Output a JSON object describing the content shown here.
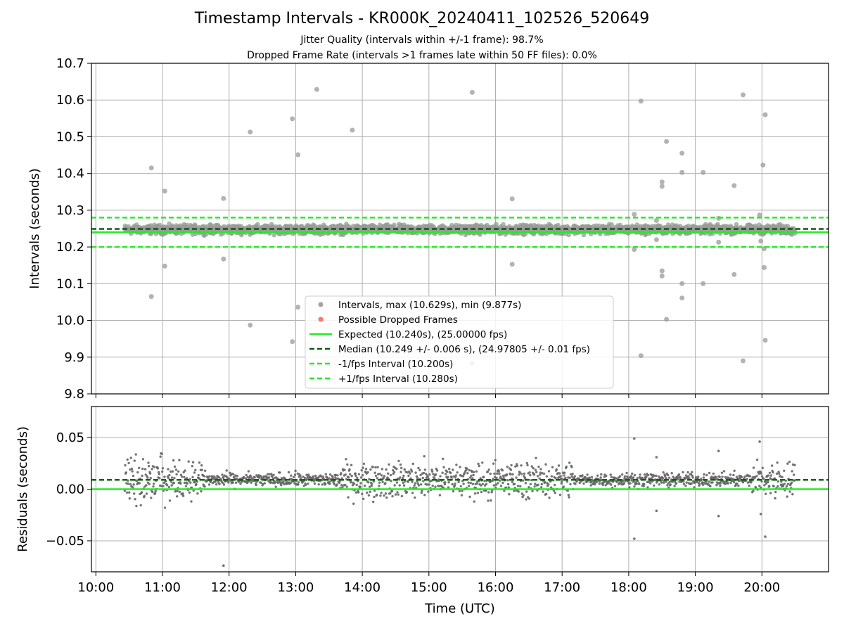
{
  "figure": {
    "title": "Timestamp Intervals - KR000K_20240411_102526_520649",
    "subtitle_1": "Jitter Quality (intervals within +/-1 frame): 98.7%",
    "subtitle_2": "Dropped Frame Rate (intervals >1 frames late within 50 FF files): 0.0%"
  },
  "colors": {
    "points": "#808080",
    "dropped": "#ff4040",
    "expected": "#22ee22",
    "median": "#006400",
    "fps_bounds": "#22ee22",
    "grid": "#b0b0b0"
  },
  "chart_data": [
    {
      "type": "scatter",
      "ylabel": "Intervals (seconds)",
      "xlabel": "",
      "grid": true,
      "xlim": [
        "09:56",
        "21:00"
      ],
      "ylim": [
        9.8,
        10.7
      ],
      "x_ticks": [
        "10:00",
        "11:00",
        "12:00",
        "13:00",
        "14:00",
        "15:00",
        "16:00",
        "17:00",
        "18:00",
        "19:00",
        "20:00"
      ],
      "y_ticks": [
        "9.8",
        "9.9",
        "10.0",
        "10.1",
        "10.2",
        "10.3",
        "10.4",
        "10.5",
        "10.6",
        "10.7"
      ],
      "legend_position": "lower-center",
      "legend": [
        {
          "label": "Intervals, max (10.629s), min (9.877s)",
          "kind": "dot",
          "color": "#999999"
        },
        {
          "label": "Possible Dropped Frames",
          "kind": "dot",
          "color": "#ff6666"
        },
        {
          "label": "Expected (10.240s), (25.00000 fps)",
          "kind": "solid",
          "color": "#22ee22"
        },
        {
          "label": "Median (10.249 +/- 0.006 s), (24.97805 +/- 0.01 fps)",
          "kind": "dashed",
          "color": "#006400"
        },
        {
          "label": "-1/fps Interval (10.200s)",
          "kind": "dashed",
          "color": "#22ee22"
        },
        {
          "label": "+1/fps Interval (10.280s)",
          "kind": "dashed",
          "color": "#22ee22"
        }
      ],
      "reference_lines": [
        {
          "name": "expected",
          "y": 10.24
        },
        {
          "name": "median",
          "y": 10.249
        },
        {
          "name": "minus_1_fps",
          "y": 10.2
        },
        {
          "name": "plus_1_fps",
          "y": 10.28
        }
      ],
      "time_range": [
        "10:26",
        "20:30"
      ],
      "main_band": [
        10.23,
        10.265
      ],
      "outliers": [
        {
          "x": "10:50",
          "y": 10.415
        },
        {
          "x": "10:50",
          "y": 10.065
        },
        {
          "x": "11:02",
          "y": 10.352
        },
        {
          "x": "11:02",
          "y": 10.148
        },
        {
          "x": "11:55",
          "y": 10.332
        },
        {
          "x": "11:55",
          "y": 10.167
        },
        {
          "x": "12:19",
          "y": 10.513
        },
        {
          "x": "12:19",
          "y": 9.987
        },
        {
          "x": "12:57",
          "y": 10.549
        },
        {
          "x": "12:57",
          "y": 9.942
        },
        {
          "x": "13:02",
          "y": 10.451
        },
        {
          "x": "13:02",
          "y": 10.036
        },
        {
          "x": "13:19",
          "y": 10.629
        },
        {
          "x": "13:51",
          "y": 10.518
        },
        {
          "x": "15:39",
          "y": 10.621
        },
        {
          "x": "15:39",
          "y": 9.883
        },
        {
          "x": "16:15",
          "y": 10.331
        },
        {
          "x": "16:15",
          "y": 10.153
        },
        {
          "x": "18:05",
          "y": 10.289
        },
        {
          "x": "18:05",
          "y": 10.193
        },
        {
          "x": "18:11",
          "y": 10.597
        },
        {
          "x": "18:11",
          "y": 9.904
        },
        {
          "x": "18:25",
          "y": 10.272
        },
        {
          "x": "18:25",
          "y": 10.22
        },
        {
          "x": "18:30",
          "y": 10.377
        },
        {
          "x": "18:30",
          "y": 10.365
        },
        {
          "x": "18:30",
          "y": 10.135
        },
        {
          "x": "18:30",
          "y": 10.121
        },
        {
          "x": "18:34",
          "y": 10.487
        },
        {
          "x": "18:34",
          "y": 10.003
        },
        {
          "x": "18:48",
          "y": 10.455
        },
        {
          "x": "18:48",
          "y": 10.403
        },
        {
          "x": "18:48",
          "y": 10.1
        },
        {
          "x": "18:48",
          "y": 10.061
        },
        {
          "x": "19:07",
          "y": 10.403
        },
        {
          "x": "19:07",
          "y": 10.1
        },
        {
          "x": "19:21",
          "y": 10.278
        },
        {
          "x": "19:21",
          "y": 10.213
        },
        {
          "x": "19:35",
          "y": 10.367
        },
        {
          "x": "19:35",
          "y": 10.125
        },
        {
          "x": "19:43",
          "y": 10.614
        },
        {
          "x": "19:43",
          "y": 9.89
        },
        {
          "x": "19:58",
          "y": 10.287
        },
        {
          "x": "19:59",
          "y": 10.216
        },
        {
          "x": "20:01",
          "y": 10.423
        },
        {
          "x": "20:02",
          "y": 10.195
        },
        {
          "x": "20:02",
          "y": 10.144
        },
        {
          "x": "20:03",
          "y": 10.56
        },
        {
          "x": "20:03",
          "y": 9.946
        }
      ]
    },
    {
      "type": "scatter",
      "ylabel": "Residuals (seconds)",
      "xlabel": "Time (UTC)",
      "grid": true,
      "xlim": [
        "09:56",
        "21:00"
      ],
      "ylim": [
        -0.08,
        0.08
      ],
      "x_ticks": [
        "10:00",
        "11:00",
        "12:00",
        "13:00",
        "14:00",
        "15:00",
        "16:00",
        "17:00",
        "18:00",
        "19:00",
        "20:00"
      ],
      "y_ticks": [
        "−0.05",
        "0.00",
        "0.05"
      ],
      "y_tick_values": [
        -0.05,
        0.0,
        0.05
      ],
      "reference_lines": [
        {
          "name": "zero",
          "y": 0.0
        },
        {
          "name": "median_offset",
          "y": 0.009
        }
      ],
      "time_range": [
        "10:26",
        "20:30"
      ],
      "main_band": [
        -0.005,
        0.022
      ],
      "outliers": [
        {
          "x": "11:55",
          "y": -0.074
        },
        {
          "x": "18:05",
          "y": 0.049
        },
        {
          "x": "18:05",
          "y": -0.048
        },
        {
          "x": "18:25",
          "y": 0.031
        },
        {
          "x": "18:25",
          "y": -0.021
        },
        {
          "x": "19:21",
          "y": 0.037
        },
        {
          "x": "19:21",
          "y": -0.026
        },
        {
          "x": "19:58",
          "y": 0.046
        },
        {
          "x": "19:59",
          "y": -0.024
        },
        {
          "x": "20:03",
          "y": -0.046
        }
      ]
    }
  ]
}
